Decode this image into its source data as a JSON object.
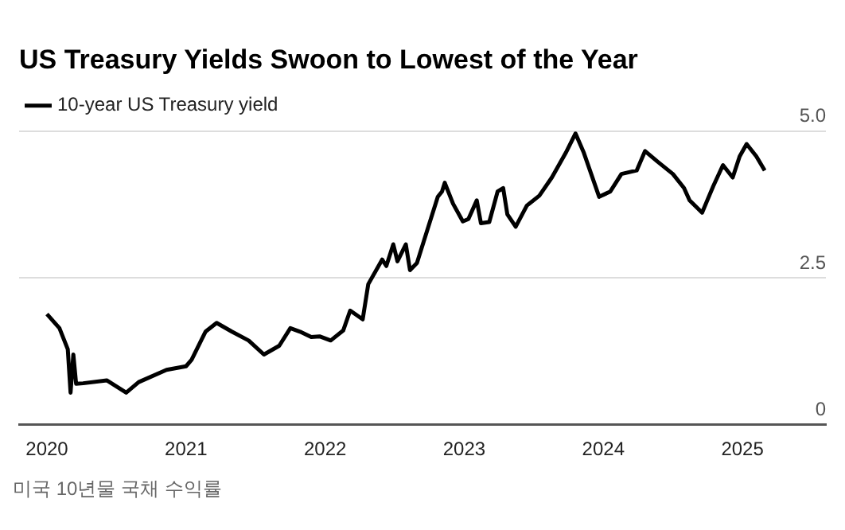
{
  "chart_data": {
    "type": "line",
    "title": "US Treasury Yields Swoon to Lowest of the Year",
    "x": [
      2020.0,
      2020.09,
      2020.15,
      2020.17,
      2020.19,
      2020.21,
      2020.26,
      2020.43,
      2020.57,
      2020.66,
      2020.86,
      2021.0,
      2021.04,
      2021.14,
      2021.22,
      2021.33,
      2021.45,
      2021.56,
      2021.67,
      2021.75,
      2021.82,
      2021.9,
      2021.96,
      2022.04,
      2022.13,
      2022.18,
      2022.27,
      2022.31,
      2022.41,
      2022.44,
      2022.49,
      2022.52,
      2022.58,
      2022.61,
      2022.66,
      2022.75,
      2022.81,
      2022.84,
      2022.86,
      2022.92,
      2022.99,
      2023.03,
      2023.09,
      2023.12,
      2023.18,
      2023.24,
      2023.28,
      2023.31,
      2023.37,
      2023.45,
      2023.54,
      2023.63,
      2023.73,
      2023.8,
      2023.86,
      2023.97,
      2024.05,
      2024.13,
      2024.24,
      2024.3,
      2024.39,
      2024.5,
      2024.58,
      2024.62,
      2024.71,
      2024.79,
      2024.86,
      2024.93,
      2024.98,
      2025.03,
      2025.1,
      2025.16
    ],
    "series": [
      {
        "name": "10-year US Treasury yield",
        "color": "#000000",
        "values": [
          1.88,
          1.64,
          1.28,
          0.54,
          1.19,
          0.69,
          0.7,
          0.75,
          0.54,
          0.72,
          0.93,
          0.99,
          1.1,
          1.58,
          1.73,
          1.58,
          1.43,
          1.19,
          1.34,
          1.64,
          1.58,
          1.49,
          1.5,
          1.43,
          1.6,
          1.94,
          1.79,
          2.39,
          2.81,
          2.7,
          3.07,
          2.78,
          3.07,
          2.63,
          2.75,
          3.43,
          3.88,
          3.97,
          4.12,
          3.76,
          3.46,
          3.5,
          3.82,
          3.43,
          3.45,
          3.97,
          4.03,
          3.58,
          3.37,
          3.73,
          3.9,
          4.21,
          4.63,
          4.96,
          4.63,
          3.88,
          3.97,
          4.27,
          4.33,
          4.66,
          4.48,
          4.27,
          4.03,
          3.82,
          3.61,
          4.06,
          4.42,
          4.21,
          4.57,
          4.78,
          4.57,
          4.33
        ]
      }
    ],
    "xlim": [
      2019.8,
      2025.6
    ],
    "xticks": [
      2020,
      2021,
      2022,
      2023,
      2024,
      2025
    ],
    "ylim": [
      0,
      5
    ],
    "yticks": [
      0,
      {
        "value": 2.5,
        "label": "2.5"
      },
      {
        "value": 5,
        "label": "5.0"
      }
    ],
    "grid": "y",
    "legend": "top left",
    "marker": "none",
    "line_style": "solid",
    "annotations": [
      "미국 10년물 국채 수익률"
    ]
  }
}
